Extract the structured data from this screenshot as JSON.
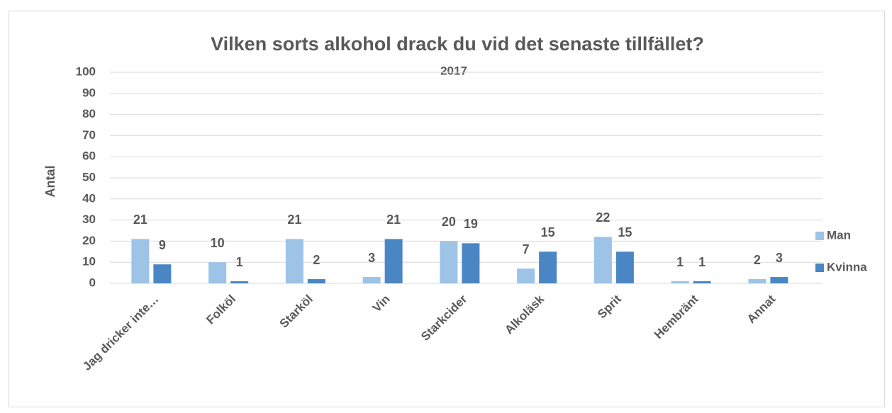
{
  "chart_data": {
    "type": "bar",
    "title": "Vilken sorts alkohol drack du vid det senaste tillfället?",
    "subtitle": "2017",
    "y_label": "Antal",
    "categories": [
      "Jag dricker inte…",
      "Folköl",
      "Starköl",
      "Vin",
      "Starkcider",
      "Alkoläsk",
      "Sprit",
      "Hembränt",
      "Annat"
    ],
    "series": [
      {
        "name": "Man",
        "color": "#9dc3e6",
        "values": [
          21,
          10,
          21,
          3,
          20,
          7,
          22,
          1,
          2
        ]
      },
      {
        "name": "Kvinna",
        "color": "#4a86c4",
        "values": [
          9,
          1,
          2,
          21,
          19,
          15,
          15,
          1,
          3
        ]
      }
    ],
    "ylim": [
      0,
      100
    ],
    "yticks": [
      0,
      10,
      20,
      30,
      40,
      50,
      60,
      70,
      80,
      90,
      100
    ],
    "grid": true,
    "legend": "right"
  }
}
